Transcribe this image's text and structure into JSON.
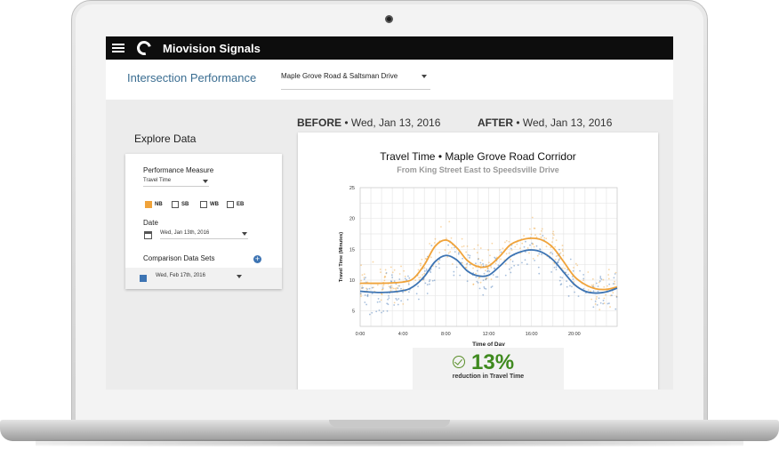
{
  "app": {
    "title": "Miovision Signals"
  },
  "subheader": {
    "page_title": "Intersection Performance",
    "intersection": "Maple Grove Road & Saltsman Drive"
  },
  "comparison": {
    "before_prefix": "BEFORE",
    "before_date": " • Wed, Jan 13, 2016",
    "after_prefix": "AFTER",
    "after_date": " • Wed, Jan 13, 2016"
  },
  "explore": {
    "title": "Explore Data",
    "performance_measure_label": "Performance Measure",
    "performance_measure_value": "Travel Time",
    "directions": [
      {
        "label": "NB",
        "checked": true
      },
      {
        "label": "SB",
        "checked": false
      },
      {
        "label": "WB",
        "checked": false
      },
      {
        "label": "EB",
        "checked": false
      }
    ],
    "date_label": "Date",
    "date_value": "Wed, Jan 13th, 2016",
    "comparison_label": "Comparison Data Sets",
    "comparison_value": "Wed, Feb 17th, 2016"
  },
  "chart_data": {
    "type": "line",
    "title": "Travel Time • Maple Grove Road Corridor",
    "subtitle": "From King Street East to Speedsville Drive",
    "xlabel": "Time of Day",
    "ylabel": "Travel Time (Minutes)",
    "xlim": [
      0,
      24
    ],
    "ylim": [
      2.5,
      25
    ],
    "x_ticks": [
      "0:00",
      "4:00",
      "8:00",
      "12:00",
      "16:00",
      "20:00"
    ],
    "y_ticks": [
      5,
      10,
      15,
      20,
      25
    ],
    "grid": true,
    "series": [
      {
        "color": "#f0a33a",
        "x": [
          0,
          2,
          4,
          5,
          6,
          7,
          8,
          9,
          10,
          11,
          12,
          13,
          14,
          15,
          16,
          17,
          18,
          19,
          20,
          21,
          22,
          23,
          24
        ],
        "y": [
          9.5,
          9.5,
          9.7,
          10.3,
          12.5,
          15.5,
          16.5,
          15.3,
          13.2,
          12.2,
          12.3,
          13.8,
          15.7,
          16.5,
          16.8,
          16.5,
          15.3,
          13.0,
          10.6,
          9.3,
          8.6,
          8.5,
          8.9
        ]
      },
      {
        "color": "#3d74b3",
        "x": [
          0,
          2,
          4,
          5,
          6,
          7,
          8,
          9,
          10,
          11,
          12,
          13,
          14,
          15,
          16,
          17,
          18,
          19,
          20,
          21,
          22,
          23,
          24
        ],
        "y": [
          8.2,
          8.0,
          8.3,
          9.0,
          10.6,
          13.0,
          14.0,
          13.3,
          11.5,
          10.7,
          10.8,
          12.2,
          13.8,
          14.6,
          14.9,
          14.5,
          13.3,
          11.3,
          9.3,
          8.2,
          7.9,
          8.1,
          8.7
        ]
      }
    ]
  },
  "stat": {
    "value": "13%",
    "caption": "reduction in Travel Time"
  }
}
